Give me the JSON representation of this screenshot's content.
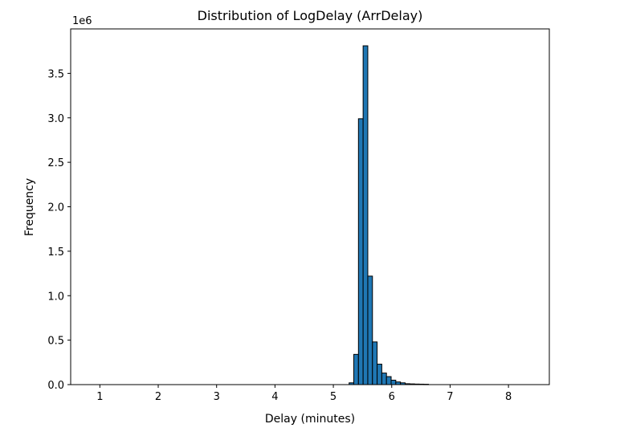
{
  "chart_data": {
    "type": "bar",
    "title": "Distribution of LogDelay (ArrDelay)",
    "xlabel": "Delay (minutes)",
    "ylabel": "Frequency",
    "y_scale_label": "1e6",
    "xlim": [
      0.5,
      8.7
    ],
    "ylim": [
      0,
      4.0
    ],
    "x_ticks": [
      1,
      2,
      3,
      4,
      5,
      6,
      7,
      8
    ],
    "y_ticks": [
      0.0,
      0.5,
      1.0,
      1.5,
      2.0,
      2.5,
      3.0,
      3.5
    ],
    "y_unit_multiplier": 1000000,
    "grid": false,
    "colors": {
      "bar_fill": "#1f77b4",
      "bar_edge": "#000000"
    },
    "bin_width": 0.08,
    "bin_starts": [
      5.27,
      5.35,
      5.43,
      5.51,
      5.59,
      5.67,
      5.75,
      5.83,
      5.91,
      5.99,
      6.07,
      6.15,
      6.23,
      6.31,
      6.39,
      6.47,
      6.55
    ],
    "values": [
      0.02,
      0.34,
      2.99,
      3.81,
      1.22,
      0.48,
      0.23,
      0.13,
      0.09,
      0.05,
      0.03,
      0.02,
      0.01,
      0.008,
      0.006,
      0.005,
      0.004
    ]
  }
}
